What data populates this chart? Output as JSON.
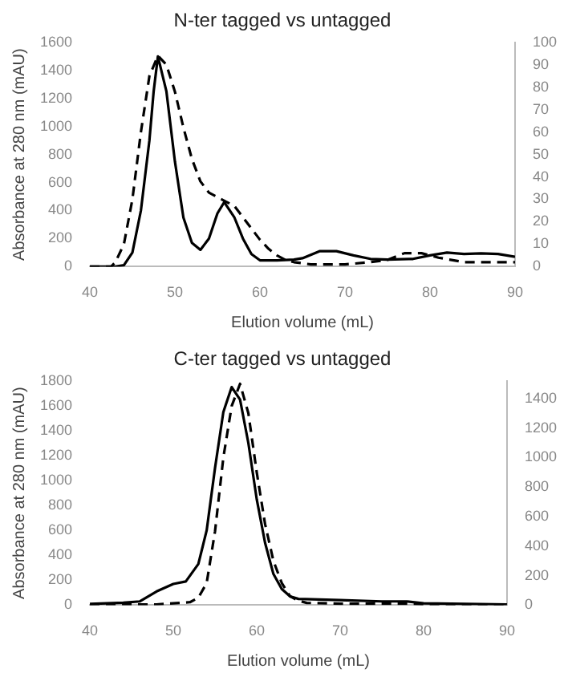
{
  "chart_data": [
    {
      "type": "line",
      "title": "N-ter tagged vs untagged",
      "xlabel": "Elution volume (mL)",
      "ylabel": "Absorbance at 280 nm (mAU)",
      "xlim": [
        40,
        90
      ],
      "xticks": [
        40,
        50,
        60,
        70,
        80,
        90
      ],
      "ylim": [
        0,
        1600
      ],
      "yticks": [
        0,
        200,
        400,
        600,
        800,
        1000,
        1200,
        1400,
        1600
      ],
      "y2lim": [
        0,
        100
      ],
      "y2ticks": [
        0,
        10,
        20,
        30,
        40,
        50,
        60,
        70,
        80,
        90,
        100
      ],
      "grid": false,
      "legend": false,
      "marker": "none",
      "series": [
        {
          "color": "#000000",
          "line_style": "solid",
          "x": [
            40,
            43,
            44,
            45,
            46,
            47,
            47.5,
            48,
            49,
            50,
            51,
            52,
            53,
            54,
            55,
            55.8,
            57,
            58,
            59,
            60,
            62,
            64,
            65,
            67,
            69,
            71,
            73,
            75,
            78,
            80,
            82,
            84,
            86,
            88,
            90
          ],
          "values": [
            0,
            0,
            10,
            100,
            400,
            900,
            1250,
            1500,
            1250,
            750,
            350,
            170,
            120,
            200,
            380,
            460,
            350,
            200,
            90,
            45,
            45,
            50,
            60,
            110,
            110,
            80,
            55,
            50,
            55,
            80,
            100,
            90,
            95,
            90,
            70
          ]
        },
        {
          "color": "#000000",
          "line_style": "dashed",
          "axis": "y2",
          "x": [
            40,
            42.5,
            43,
            44,
            45,
            46,
            47,
            48,
            49,
            50,
            51,
            52,
            53,
            54,
            55,
            56,
            57,
            58,
            59,
            60,
            61,
            62,
            63,
            64,
            66,
            70,
            73,
            75,
            77,
            79,
            81,
            84,
            87,
            90
          ],
          "values": [
            0,
            0,
            2,
            10,
            30,
            60,
            85,
            94,
            90,
            78,
            62,
            48,
            38,
            33,
            31,
            29,
            27,
            22,
            17,
            12,
            8,
            5,
            3,
            2,
            1,
            1,
            2,
            3,
            6,
            6,
            4,
            2,
            2,
            2
          ]
        }
      ]
    },
    {
      "type": "line",
      "title": "C-ter tagged vs untagged",
      "xlabel": "Elution volume (mL)",
      "ylabel": "Absorbance at 280 nm (mAU)",
      "xlim": [
        40,
        90
      ],
      "xticks": [
        40,
        50,
        60,
        70,
        80,
        90
      ],
      "ylim": [
        0,
        1800
      ],
      "yticks": [
        0,
        200,
        400,
        600,
        800,
        1000,
        1200,
        1400,
        1600,
        1800
      ],
      "y2lim": [
        0,
        1520
      ],
      "y2ticks": [
        0,
        200,
        400,
        600,
        800,
        1000,
        1200,
        1400
      ],
      "grid": false,
      "legend": false,
      "marker": "none",
      "series": [
        {
          "color": "#000000",
          "line_style": "solid",
          "x": [
            40,
            44,
            46,
            48,
            50,
            51.5,
            53,
            54,
            55,
            56,
            57,
            58,
            59,
            60,
            61,
            62,
            63,
            64,
            65,
            70,
            75,
            78,
            80,
            85,
            90
          ],
          "values": [
            10,
            20,
            30,
            110,
            170,
            190,
            330,
            600,
            1100,
            1550,
            1750,
            1650,
            1300,
            850,
            500,
            250,
            130,
            70,
            50,
            40,
            30,
            30,
            15,
            10,
            5
          ]
        },
        {
          "color": "#000000",
          "line_style": "dashed",
          "axis": "y2",
          "x": [
            40,
            44,
            48,
            52,
            53,
            54,
            55,
            56,
            57,
            58,
            59,
            60,
            61,
            62,
            63,
            64,
            65,
            66,
            70,
            78,
            80,
            90
          ],
          "values": [
            0,
            5,
            5,
            20,
            50,
            150,
            500,
            1000,
            1350,
            1500,
            1300,
            900,
            550,
            300,
            150,
            60,
            30,
            15,
            10,
            10,
            5,
            5
          ]
        }
      ]
    }
  ]
}
